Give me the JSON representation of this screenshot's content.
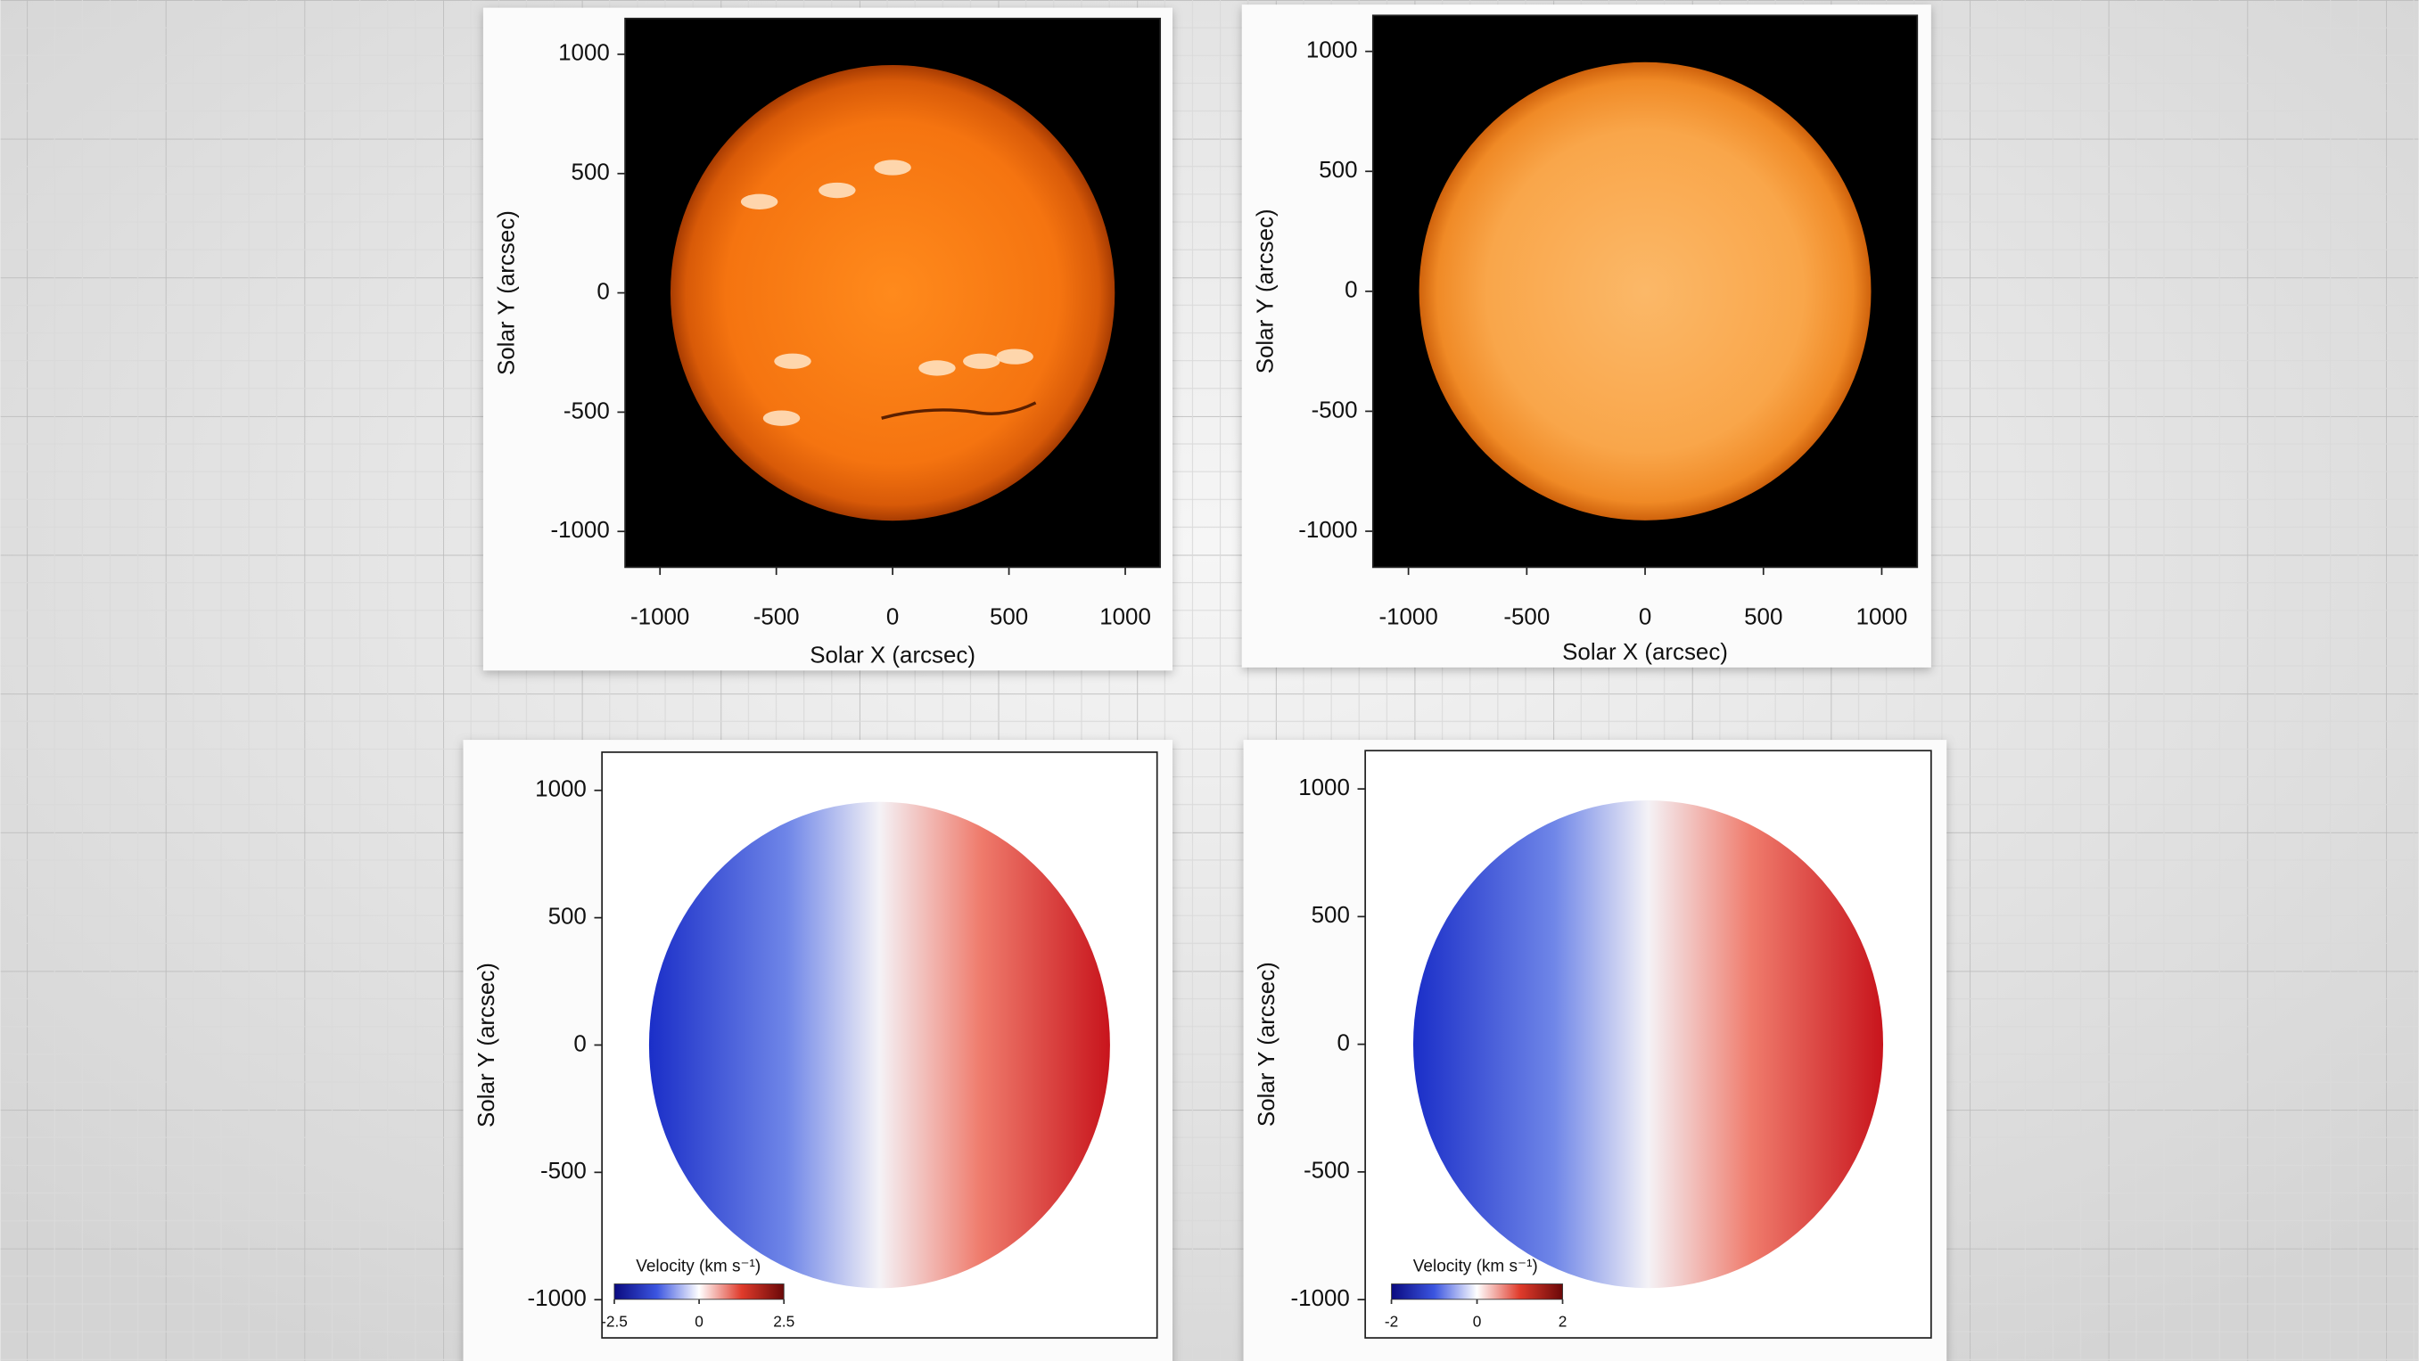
{
  "chart_data": [
    {
      "type": "image",
      "xlabel": "Solar X (arcsec)",
      "ylabel": "Solar Y (arcsec)",
      "style": "intensity-dark",
      "xlim": [
        -1150,
        1150
      ],
      "ylim": [
        -1150,
        1150
      ],
      "xticks": [
        -1000,
        -500,
        0,
        500,
        1000
      ],
      "yticks": [
        -1000,
        -500,
        0,
        500,
        1000
      ]
    },
    {
      "type": "image",
      "xlabel": "Solar X (arcsec)",
      "ylabel": "Solar Y (arcsec)",
      "style": "intensity-light",
      "xlim": [
        -1150,
        1150
      ],
      "ylim": [
        -1150,
        1150
      ],
      "xticks": [
        -1000,
        -500,
        0,
        500,
        1000
      ],
      "yticks": [
        -1000,
        -500,
        0,
        500,
        1000
      ]
    },
    {
      "type": "image",
      "ylabel": "Solar Y (arcsec)",
      "style": "velocity",
      "xlim": [
        -1150,
        1150
      ],
      "ylim": [
        -1150,
        1150
      ],
      "yticks": [
        -1000,
        -500,
        0,
        500,
        1000
      ],
      "colorbar": {
        "label": "Velocity (km s⁻¹)",
        "lim": [
          -2.5,
          2.5
        ],
        "ticks": [
          -2.5,
          0,
          2.5
        ]
      }
    },
    {
      "type": "image",
      "ylabel": "Solar Y (arcsec)",
      "style": "velocity",
      "xlim": [
        -1150,
        1150
      ],
      "ylim": [
        -1150,
        1150
      ],
      "yticks": [
        -1000,
        -500,
        0,
        500,
        1000
      ],
      "colorbar": {
        "label": "Velocity (km s⁻¹)",
        "lim": [
          -2,
          2
        ],
        "ticks": [
          -2,
          0,
          2
        ]
      }
    }
  ]
}
